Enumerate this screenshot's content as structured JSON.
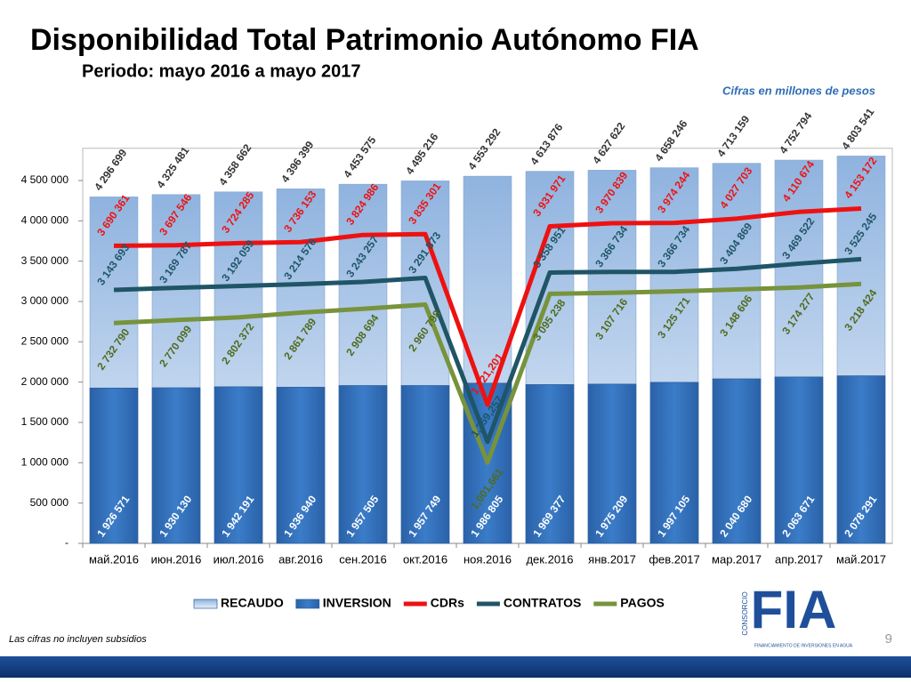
{
  "chart_data": {
    "type": "bar",
    "title": "Disponibilidad Total Patrimonio Autónomo FIA",
    "subtitle": "Periodo: mayo 2016 a mayo 2017",
    "note": "Cifras en millones de pesos",
    "footnote": "Las cifras no incluyen subsidios",
    "page_number": "9",
    "logo": {
      "text": "FIA",
      "top": "CONSORCIO",
      "bottom": "FINANCIAMIENTO DE INVERSIONES EN AGUA"
    },
    "categories": [
      "май.2016",
      "июн.2016",
      "июл.2016",
      "авг.2016",
      "сен.2016",
      "окт.2016",
      "ноя.2016",
      "дек.2016",
      "янв.2017",
      "фев.2017",
      "мар.2017",
      "апр.2017",
      "май.2017"
    ],
    "ylim": [
      0,
      4900000
    ],
    "yticks": [
      {
        "value": 0,
        "label": "-"
      },
      {
        "value": 500000,
        "label": "500 000"
      },
      {
        "value": 1000000,
        "label": "1 000 000"
      },
      {
        "value": 1500000,
        "label": "1 500 000"
      },
      {
        "value": 2000000,
        "label": "2 000 000"
      },
      {
        "value": 2500000,
        "label": "2 500 000"
      },
      {
        "value": 3000000,
        "label": "3 000 000"
      },
      {
        "value": 3500000,
        "label": "3 500 000"
      },
      {
        "value": 4000000,
        "label": "4 000 000"
      },
      {
        "value": 4500000,
        "label": "4 500 000"
      }
    ],
    "legend": "bottom",
    "series": [
      {
        "name": "RECAUDO",
        "kind": "bar",
        "color": "#bcd2ec",
        "values": [
          4296699,
          4325481,
          4358662,
          4396399,
          4453575,
          4495216,
          4553292,
          4613876,
          4627622,
          4658246,
          4713159,
          4752794,
          4803541
        ],
        "value_labels": [
          "4 296 699",
          "4 325 481",
          "4 358 662",
          "4 396 399",
          "4 453 575",
          "4 495 216",
          "4 553 292",
          "4 613 876",
          "4 627 622",
          "4 658 246",
          "4 713 159",
          "4 752 794",
          "4 803 541"
        ]
      },
      {
        "name": "INVERSION",
        "kind": "bar",
        "color": "#2f6db5",
        "values": [
          1926571,
          1930130,
          1942191,
          1936940,
          1957505,
          1957749,
          1986805,
          1969377,
          1975209,
          1997105,
          2040680,
          2063671,
          2078291
        ],
        "value_labels": [
          "1 926 571",
          "1 930 130",
          "1 942 191",
          "1 936 940",
          "1 957 505",
          "1 957 749",
          "1 986 805",
          "1 969 377",
          "1 975 209",
          "1 997 105",
          "2 040 680",
          "2 063 671",
          "2 078 291"
        ]
      },
      {
        "name": "CDRs",
        "kind": "line",
        "color": "#ee1111",
        "values": [
          3690361,
          3697546,
          3724285,
          3736153,
          3824986,
          3835301,
          1721201,
          3931971,
          3970839,
          3974244,
          4027703,
          4110674,
          4153172
        ],
        "value_labels": [
          "3 690 361",
          "3 697 546",
          "3 724 285",
          "3 736 153",
          "3 824 986",
          "3 835 301",
          "1,721,201",
          "3 931 971",
          "3 970 839",
          "3 974 244",
          "4 027 703",
          "4 110 674",
          "4 153 172"
        ]
      },
      {
        "name": "CONTRATOS",
        "kind": "line",
        "color": "#1f5566",
        "values": [
          3143693,
          3169787,
          3192059,
          3214576,
          3243257,
          3291873,
          1259257,
          3358951,
          3366734,
          3366734,
          3404869,
          3469522,
          3525245
        ],
        "value_labels": [
          "3 143 693",
          "3 169 787",
          "3 192 059",
          "3 214 576",
          "3 243 257",
          "3 291 873",
          "1,259,257",
          "3 358 951",
          "3 366 734",
          "3 366 734",
          "3 404 869",
          "3 469 522",
          "3 525 245"
        ]
      },
      {
        "name": "PAGOS",
        "kind": "line",
        "color": "#77933c",
        "values": [
          2732790,
          2770099,
          2802372,
          2861789,
          2908694,
          2960798,
          1001661,
          3095238,
          3107716,
          3125171,
          3148606,
          3174277,
          3218424
        ],
        "value_labels": [
          "2 732 790",
          "2 770 099",
          "2 802 372",
          "2 861 789",
          "2 908 694",
          "2 960 798",
          "1,001,661",
          "3 095 238",
          "3 107 716",
          "3 125 171",
          "3 148 606",
          "3 174 277",
          "3 218 424"
        ]
      }
    ]
  }
}
